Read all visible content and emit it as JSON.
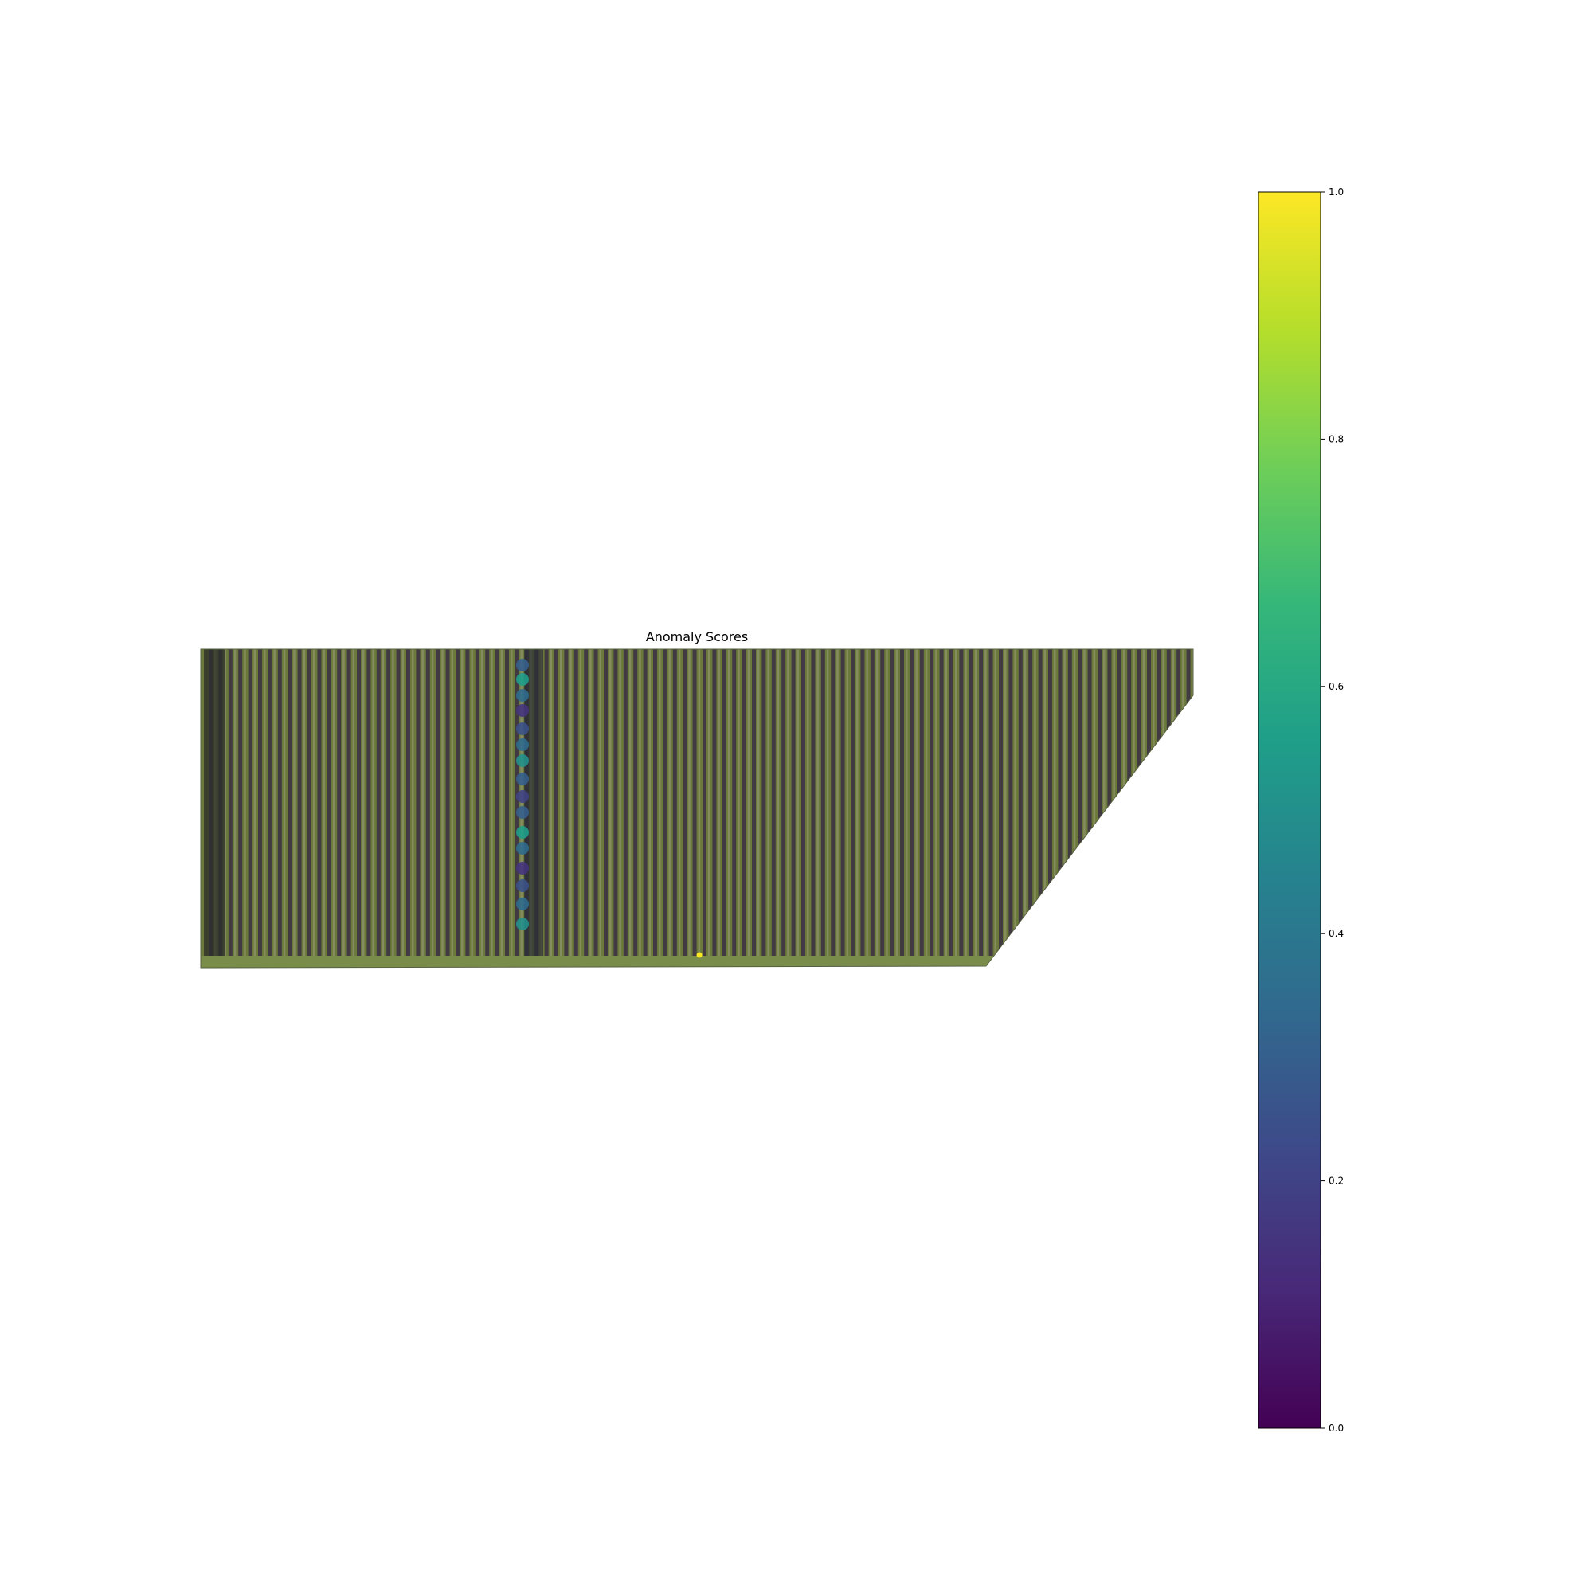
{
  "chart_data": {
    "type": "heatmap",
    "title": "Anomaly Scores",
    "xlabel": "",
    "ylabel": "",
    "axes_visible": false,
    "background": "aerial orchard orthomosaic with tree rows",
    "colorbar": {
      "colormap": "viridis",
      "range": [
        0.0,
        1.0
      ],
      "ticks": [
        "0.0",
        "0.2",
        "0.4",
        "0.6",
        "0.8",
        "1.0"
      ],
      "stops": [
        "#440154",
        "#482878",
        "#3e4989",
        "#31688e",
        "#26828e",
        "#1f9e89",
        "#35b779",
        "#6ece58",
        "#b5de2b",
        "#fde725"
      ]
    },
    "highlighted_trees": [
      {
        "region": "central row",
        "score": 0.3
      },
      {
        "region": "central row",
        "score": 0.55
      },
      {
        "region": "central row",
        "score": 0.35
      },
      {
        "region": "central row",
        "score": 0.15
      },
      {
        "region": "central row",
        "score": 0.25
      },
      {
        "region": "central row",
        "score": 0.35
      },
      {
        "region": "central row",
        "score": 0.5
      },
      {
        "region": "central row",
        "score": 0.3
      },
      {
        "region": "central row",
        "score": 0.2
      },
      {
        "region": "bottom field",
        "score": 1.0
      }
    ],
    "colors": {
      "field_green": "#6b7a3a",
      "tree_dark": "#3b2f45",
      "soil": "#b8b0a0"
    }
  }
}
